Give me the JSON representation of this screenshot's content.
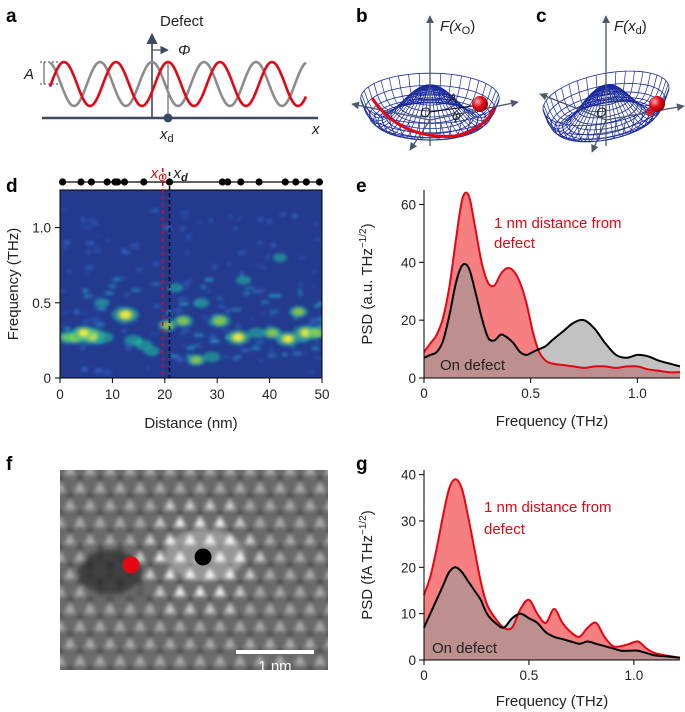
{
  "panels": {
    "a": "a",
    "b": "b",
    "c": "c",
    "d": "d",
    "e": "e",
    "f": "f",
    "g": "g"
  },
  "panel_a": {
    "title": "Defect",
    "amp_label": "A",
    "phase_label": "Φ",
    "xd_label": "x",
    "xd_sub": "d",
    "x_axis": "x",
    "colors": {
      "wave1": "#e30613",
      "wave2": "#8c8c8c",
      "axis": "#3b4a5e"
    }
  },
  "panel_b": {
    "func": "F(x",
    "sub": "O",
    "close": ")",
    "origin": "O",
    "amp": "A",
    "phase": "φ"
  },
  "panel_c": {
    "func": "F(x",
    "sub": "d",
    "close": ")",
    "origin": "O"
  },
  "panel_f": {
    "scale_bar_label": "1 nm",
    "markers": {
      "red": "#e30613",
      "black": "#000000"
    }
  },
  "chart_data": [
    {
      "id": "d",
      "type": "heatmap",
      "xlabel": "Distance (nm)",
      "ylabel": "Frequency (THz)",
      "xlim": [
        0,
        50
      ],
      "ylim": [
        0,
        1.25
      ],
      "xticks": [
        "0",
        "10",
        "20",
        "30",
        "40",
        "50"
      ],
      "yticks": [
        "0",
        "0.5",
        "1.0"
      ],
      "marker_labels": {
        "x0": "x",
        "x0_sub": "O",
        "xd": "x",
        "xd_sub": "d"
      },
      "x0_position_nm": 19.6,
      "xd_position_nm": 20.9,
      "atom_positions_nm": [
        0.5,
        4,
        6,
        9,
        10.5,
        11,
        12.3,
        16,
        20.9,
        31,
        32,
        34.5,
        38,
        43,
        45,
        47,
        49.5
      ],
      "hotspots": [
        {
          "x": 1.5,
          "y": 0.27,
          "v": 0.6
        },
        {
          "x": 3,
          "y": 0.27,
          "v": 0.7
        },
        {
          "x": 6,
          "y": 0.28,
          "v": 1.0
        },
        {
          "x": 4.5,
          "y": 0.3,
          "v": 0.8
        },
        {
          "x": 8.5,
          "y": 0.27,
          "v": 0.5
        },
        {
          "x": 12.5,
          "y": 0.42,
          "v": 0.95
        },
        {
          "x": 14,
          "y": 0.25,
          "v": 0.5
        },
        {
          "x": 16,
          "y": 0.22,
          "v": 0.45
        },
        {
          "x": 17.5,
          "y": 0.18,
          "v": 0.4
        },
        {
          "x": 20.5,
          "y": 0.35,
          "v": 0.55
        },
        {
          "x": 23.5,
          "y": 0.38,
          "v": 0.6
        },
        {
          "x": 26,
          "y": 0.12,
          "v": 0.55
        },
        {
          "x": 29,
          "y": 0.14,
          "v": 0.45
        },
        {
          "x": 30.5,
          "y": 0.38,
          "v": 0.7
        },
        {
          "x": 34,
          "y": 0.27,
          "v": 0.85
        },
        {
          "x": 37.5,
          "y": 0.3,
          "v": 0.45
        },
        {
          "x": 40.5,
          "y": 0.3,
          "v": 0.6
        },
        {
          "x": 43.5,
          "y": 0.26,
          "v": 0.8
        },
        {
          "x": 47,
          "y": 0.3,
          "v": 0.9
        },
        {
          "x": 49,
          "y": 0.3,
          "v": 0.6
        },
        {
          "x": 45.5,
          "y": 0.44,
          "v": 0.55
        },
        {
          "x": 8,
          "y": 0.5,
          "v": 0.35
        },
        {
          "x": 27,
          "y": 0.5,
          "v": 0.4
        },
        {
          "x": 35,
          "y": 0.65,
          "v": 0.35
        },
        {
          "x": 42,
          "y": 0.8,
          "v": 0.3
        },
        {
          "x": 22,
          "y": 0.6,
          "v": 0.35
        }
      ]
    },
    {
      "id": "e",
      "type": "area",
      "xlabel": "Frequency (THz)",
      "ylabel": "PSD (a.u. THz",
      "ylabel_sup": "−1/2",
      "ylabel_close": ")",
      "xlim": [
        0,
        1.2
      ],
      "ylim": [
        0,
        65
      ],
      "xticks": [
        "0",
        "0.5",
        "1.0"
      ],
      "xtick_values": [
        0,
        0.5,
        1.0
      ],
      "yticks": [
        "0",
        "20",
        "40",
        "60"
      ],
      "ytick_values": [
        0,
        20,
        40,
        60
      ],
      "series": [
        {
          "name": "1 nm distance from defect",
          "line1": "1 nm distance from",
          "line2": "defect",
          "color": "#e30613",
          "fill": "#f5696b",
          "x": [
            0,
            0.03,
            0.06,
            0.09,
            0.12,
            0.15,
            0.18,
            0.21,
            0.24,
            0.27,
            0.3,
            0.33,
            0.36,
            0.39,
            0.42,
            0.45,
            0.48,
            0.51,
            0.54,
            0.57,
            0.6,
            0.65,
            0.7,
            0.75,
            0.8,
            0.85,
            0.9,
            0.95,
            1.0,
            1.05,
            1.1,
            1.15,
            1.2
          ],
          "values": [
            9,
            12,
            15,
            21,
            32,
            48,
            62,
            63,
            52,
            40,
            33,
            32,
            36,
            38,
            37,
            33,
            26,
            16,
            9,
            6,
            5,
            4.5,
            4,
            3.5,
            4,
            4,
            3.5,
            4,
            4,
            3,
            2.5,
            2,
            2
          ]
        },
        {
          "name": "On defect",
          "color": "#000000",
          "fill": "#9a9a9a",
          "x": [
            0,
            0.03,
            0.06,
            0.09,
            0.12,
            0.15,
            0.18,
            0.21,
            0.24,
            0.27,
            0.3,
            0.33,
            0.36,
            0.39,
            0.42,
            0.45,
            0.48,
            0.51,
            0.54,
            0.57,
            0.6,
            0.65,
            0.7,
            0.75,
            0.8,
            0.85,
            0.9,
            0.95,
            1.0,
            1.05,
            1.1,
            1.15,
            1.2
          ],
          "values": [
            7,
            8,
            9,
            13,
            22,
            33,
            39,
            38,
            30,
            21,
            14,
            13,
            15,
            14,
            12,
            9,
            8,
            9,
            10,
            11,
            13,
            16,
            19,
            20,
            17,
            12,
            8,
            7,
            8,
            7.5,
            6,
            5,
            4
          ]
        }
      ]
    },
    {
      "id": "g",
      "type": "area",
      "xlabel": "Frequency (THz)",
      "ylabel": "PSD (fA THz",
      "ylabel_sup": "−1/2",
      "ylabel_close": ")",
      "xlim": [
        0,
        1.22
      ],
      "ylim": [
        0,
        41
      ],
      "xticks": [
        "0",
        "0.5",
        "1.0"
      ],
      "xtick_values": [
        0,
        0.5,
        1.0
      ],
      "yticks": [
        "0",
        "10",
        "20",
        "30",
        "40"
      ],
      "ytick_values": [
        0,
        10,
        20,
        30,
        40
      ],
      "series": [
        {
          "name": "1 nm distance from defect",
          "line1": "1 nm distance from",
          "line2": "defect",
          "color": "#e30613",
          "fill": "#f5696b",
          "x": [
            0,
            0.03,
            0.06,
            0.09,
            0.12,
            0.15,
            0.18,
            0.21,
            0.24,
            0.27,
            0.3,
            0.34,
            0.38,
            0.42,
            0.46,
            0.5,
            0.54,
            0.58,
            0.62,
            0.66,
            0.7,
            0.74,
            0.78,
            0.82,
            0.86,
            0.9,
            0.94,
            0.98,
            1.02,
            1.06,
            1.1,
            1.15,
            1.22
          ],
          "values": [
            14,
            18,
            24,
            31,
            37,
            39,
            37,
            31,
            24,
            17,
            12,
            9,
            7,
            7,
            11,
            13,
            10,
            8,
            11,
            8,
            6,
            5,
            7,
            8,
            5,
            3,
            3,
            3.5,
            4,
            2.5,
            1.5,
            1,
            0.5
          ]
        },
        {
          "name": "On defect",
          "color": "#000000",
          "fill": "#9a9a9a",
          "x": [
            0,
            0.03,
            0.06,
            0.09,
            0.12,
            0.15,
            0.18,
            0.21,
            0.24,
            0.27,
            0.3,
            0.34,
            0.38,
            0.42,
            0.46,
            0.5,
            0.54,
            0.58,
            0.62,
            0.66,
            0.7,
            0.74,
            0.78,
            0.82,
            0.86,
            0.9,
            0.94,
            0.98,
            1.02,
            1.06,
            1.1,
            1.15,
            1.22
          ],
          "values": [
            7,
            10,
            13,
            16,
            19,
            20,
            19,
            17,
            15,
            13,
            10,
            8,
            7,
            9,
            10,
            9,
            8,
            6,
            5,
            4.5,
            4,
            3.5,
            4,
            3.5,
            3,
            2.5,
            2,
            2,
            2,
            1.5,
            1,
            0.8,
            0.5
          ]
        }
      ]
    }
  ]
}
